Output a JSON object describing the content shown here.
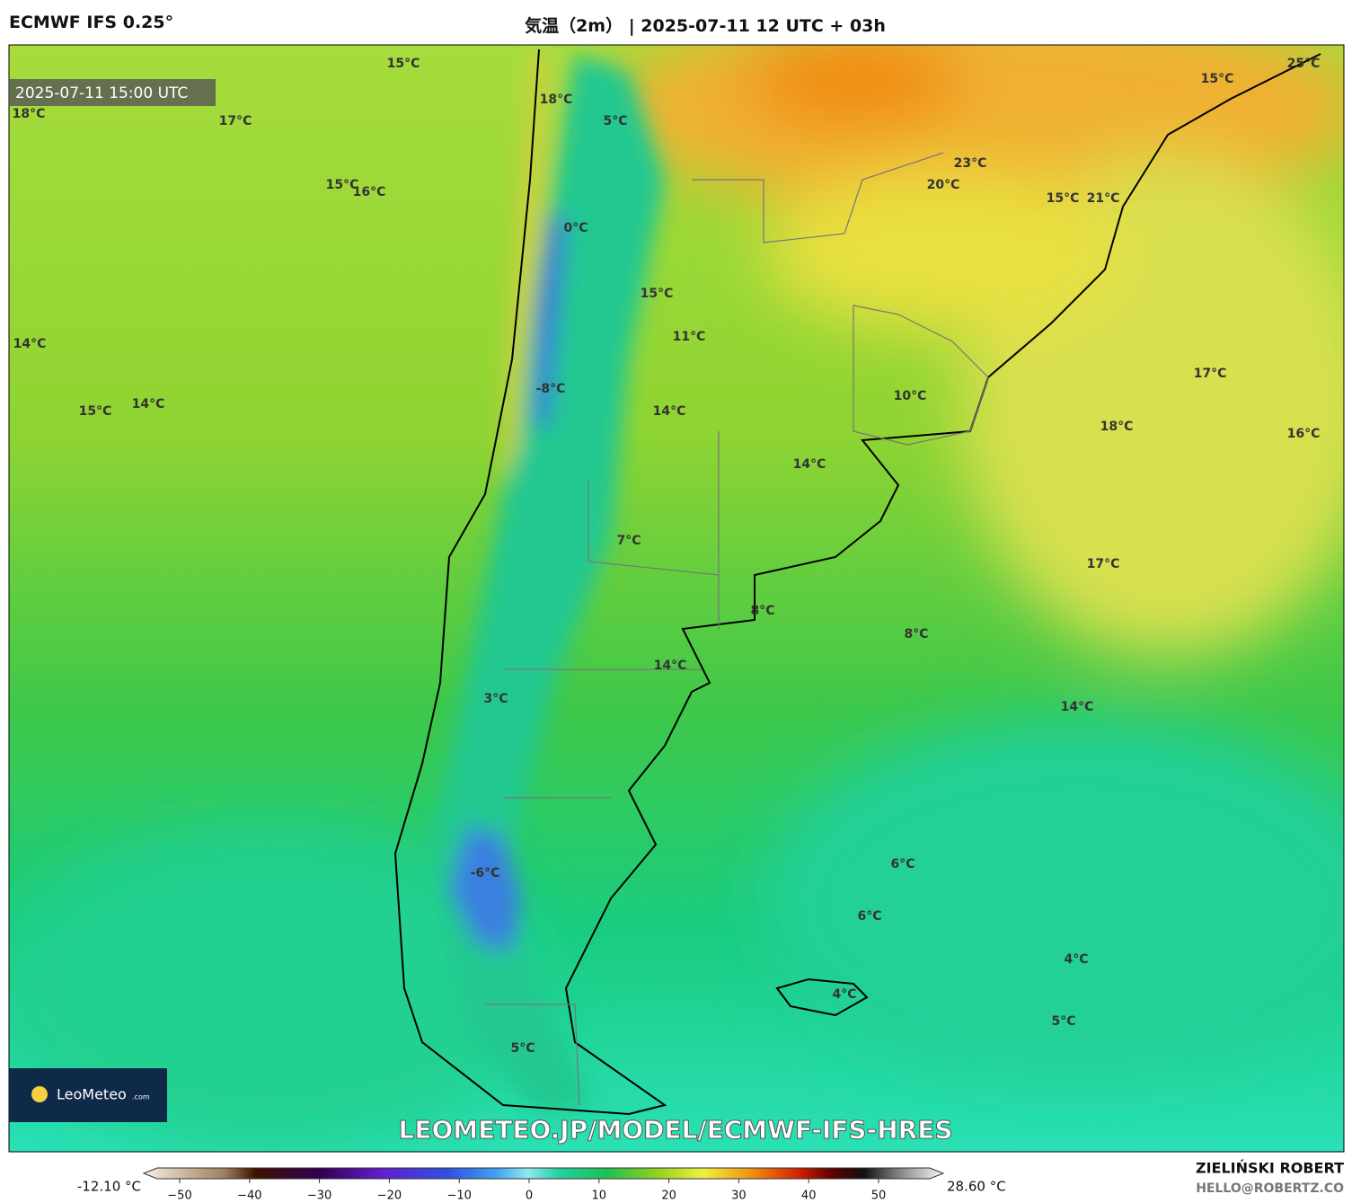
{
  "header": {
    "model": "ECMWF IFS 0.25°",
    "title": "気温（2m） | 2025-07-11 12 UTC + 03h"
  },
  "map": {
    "timestamp": "2025-07-11 15:00 UTC",
    "labels": [
      "15°C",
      "18°C",
      "5°C",
      "18°C",
      "17°C",
      "15°C",
      "16°C",
      "0°C",
      "15°C",
      "11°C",
      "14°C",
      "-8°C",
      "14°C",
      "15°C",
      "14°C",
      "7°C",
      "8°C",
      "8°C",
      "14°C",
      "3°C",
      "14°C",
      "6°C",
      "6°C",
      "-6°C",
      "4°C",
      "5°C",
      "4°C",
      "5°C",
      "25°C",
      "15°C",
      "23°C",
      "20°C",
      "15°C",
      "21°C",
      "10°C",
      "14°C",
      "17°C",
      "18°C",
      "16°C",
      "17°C"
    ],
    "watermark": "LEOMETEO.JP/MODEL/ECMWF-IFS-HRES",
    "logo": {
      "name": "LeoMeteo",
      "suffix": ".com"
    }
  },
  "colorbar": {
    "min_label": "-12.10 °C",
    "max_label": "28.60 °C",
    "ticks": [
      {
        "value": -50,
        "label": "−50"
      },
      {
        "value": -40,
        "label": "−40"
      },
      {
        "value": -30,
        "label": "−30"
      },
      {
        "value": -20,
        "label": "−20"
      },
      {
        "value": -10,
        "label": "−10"
      },
      0,
      10,
      20,
      30,
      40,
      50
    ]
  },
  "footer": {
    "author": "ZIELIŃSKI ROBERT",
    "email": "HELLO@ROBERTZ.CO"
  }
}
